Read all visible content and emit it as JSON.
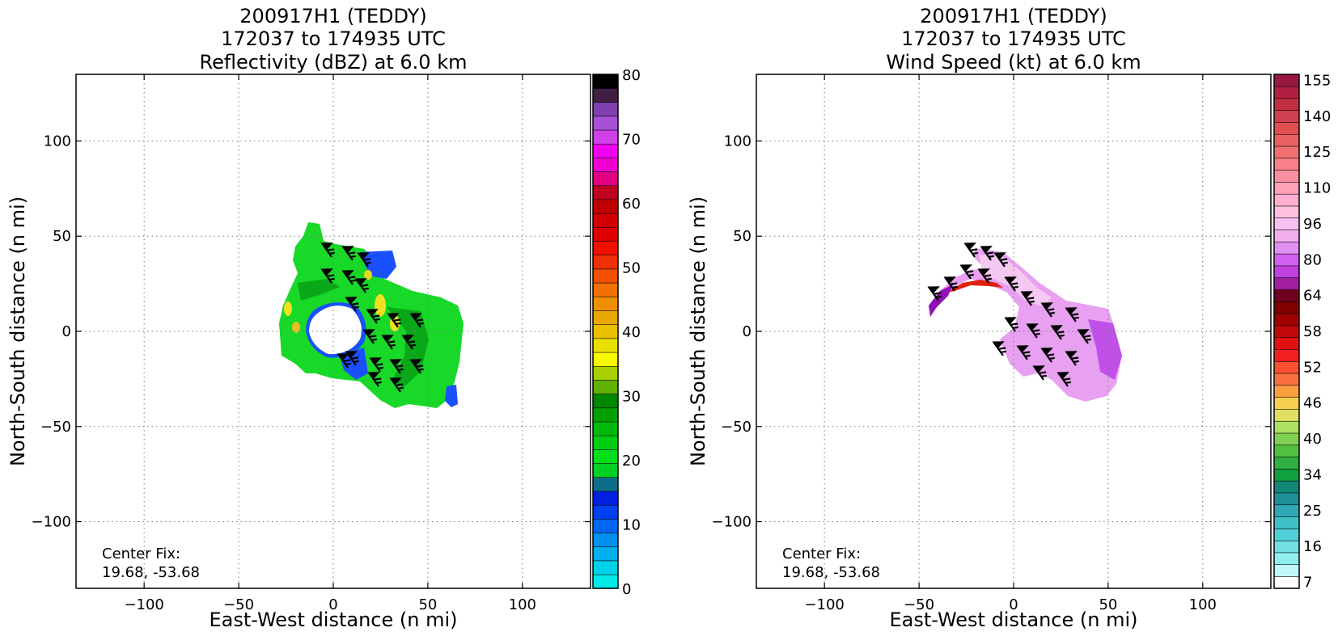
{
  "chart_data": [
    {
      "type": "heatmap",
      "title_lines": [
        "200917H1 (TEDDY)",
        "172037 to 174935 UTC",
        "Reflectivity (dBZ) at 6.0 km"
      ],
      "xlabel": "East-West distance (n mi)",
      "ylabel": "North-South distance (n mi)",
      "xlim": [
        -136,
        136
      ],
      "ylim": [
        -135,
        135
      ],
      "xticks": [
        -100,
        -50,
        0,
        50,
        100
      ],
      "yticks": [
        -100,
        -50,
        0,
        50,
        100
      ],
      "grid": true,
      "annotation_lines": [
        "Center Fix:",
        "19.68, -53.68"
      ],
      "colorbar": {
        "min": 0,
        "max": 80,
        "ticks": [
          0,
          10,
          20,
          30,
          40,
          50,
          60,
          70,
          80
        ],
        "colors": [
          "#00e8e8",
          "#00d0e8",
          "#00b0ee",
          "#0090f0",
          "#0068f0",
          "#0040f0",
          "#0020e0",
          "#0a6e8a",
          "#00d024",
          "#00e01a",
          "#00cc10",
          "#00b808",
          "#00a000",
          "#008800",
          "#60b000",
          "#a8d000",
          "#f8f800",
          "#e8e000",
          "#e8c000",
          "#e8a800",
          "#f09000",
          "#f07000",
          "#f05000",
          "#f03000",
          "#f01000",
          "#e00000",
          "#d00000",
          "#c00000",
          "#c00020",
          "#e00080",
          "#f000d0",
          "#f000f0",
          "#d040e8",
          "#a850d8",
          "#8040b0",
          "#402040",
          "#000000"
        ]
      },
      "center_fix": [
        0,
        0
      ]
    },
    {
      "type": "heatmap",
      "title_lines": [
        "200917H1 (TEDDY)",
        "172037 to 174935 UTC",
        "Wind Speed (kt) at 6.0 km"
      ],
      "xlabel": "East-West distance (n mi)",
      "ylabel": "North-South distance (n mi)",
      "xlim": [
        -136,
        136
      ],
      "ylim": [
        -135,
        135
      ],
      "xticks": [
        -100,
        -50,
        0,
        50,
        100
      ],
      "yticks": [
        -100,
        -50,
        0,
        50,
        100
      ],
      "grid": true,
      "annotation_lines": [
        "Center Fix:",
        "19.68, -53.68"
      ],
      "colorbar": {
        "tick_labels": [
          "7",
          "16",
          "25",
          "34",
          "40",
          "46",
          "52",
          "58",
          "64",
          "80",
          "96",
          "110",
          "125",
          "140",
          "155"
        ],
        "colors": [
          "#ffffff",
          "#c0f8f8",
          "#90f0f0",
          "#70e0e0",
          "#50d0d8",
          "#40c0c8",
          "#30a8b8",
          "#209098",
          "#108878",
          "#10a040",
          "#30b040",
          "#50c040",
          "#80d050",
          "#b0e060",
          "#e0e060",
          "#f8d050",
          "#f8a040",
          "#f87040",
          "#f85030",
          "#f02020",
          "#e01010",
          "#c00808",
          "#a00000",
          "#800000",
          "#700020",
          "#a020a0",
          "#c040e0",
          "#d060f0",
          "#e090f0",
          "#f0b0f0",
          "#f8c0f0",
          "#ffc0e0",
          "#ffb0d0",
          "#ffa0b8",
          "#f890a0",
          "#f88088",
          "#f07070",
          "#e86060",
          "#e05050",
          "#d04050",
          "#c03040",
          "#b02040",
          "#981840"
        ]
      },
      "center_fix": [
        0,
        0
      ]
    }
  ]
}
